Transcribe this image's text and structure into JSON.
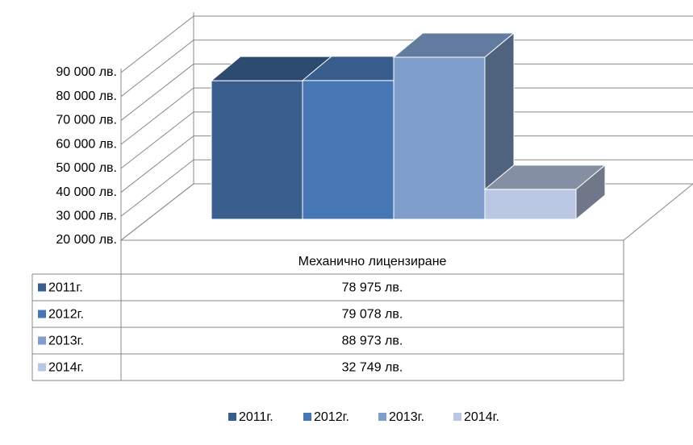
{
  "chart_data": {
    "type": "bar3d",
    "categories": [
      "Механично лицензиране"
    ],
    "series": [
      {
        "name": "2011г.",
        "color": "#3a5f8f",
        "values": [
          78975
        ],
        "value_labels": [
          "78 975 лв."
        ]
      },
      {
        "name": "2012г.",
        "color": "#4677b4",
        "values": [
          79078
        ],
        "value_labels": [
          "79 078 лв."
        ]
      },
      {
        "name": "2013г.",
        "color": "#7f9ecb",
        "values": [
          88973
        ],
        "value_labels": [
          "88 973 лв."
        ]
      },
      {
        "name": "2014г.",
        "color": "#b9c7e2",
        "values": [
          32749
        ],
        "value_labels": [
          "32 749 лв."
        ]
      }
    ],
    "ylim": [
      20000,
      90000
    ],
    "yticks": [
      {
        "value": 20000,
        "label": "20 000 лв."
      },
      {
        "value": 30000,
        "label": "30 000 лв."
      },
      {
        "value": 40000,
        "label": "40 000 лв."
      },
      {
        "value": 50000,
        "label": "50 000 лв."
      },
      {
        "value": 60000,
        "label": "60 000 лв."
      },
      {
        "value": 70000,
        "label": "70 000 лв."
      },
      {
        "value": 80000,
        "label": "80 000 лв."
      },
      {
        "value": 90000,
        "label": "90 000 лв."
      }
    ],
    "grid": true,
    "legend": "bottom",
    "data_table": true
  }
}
